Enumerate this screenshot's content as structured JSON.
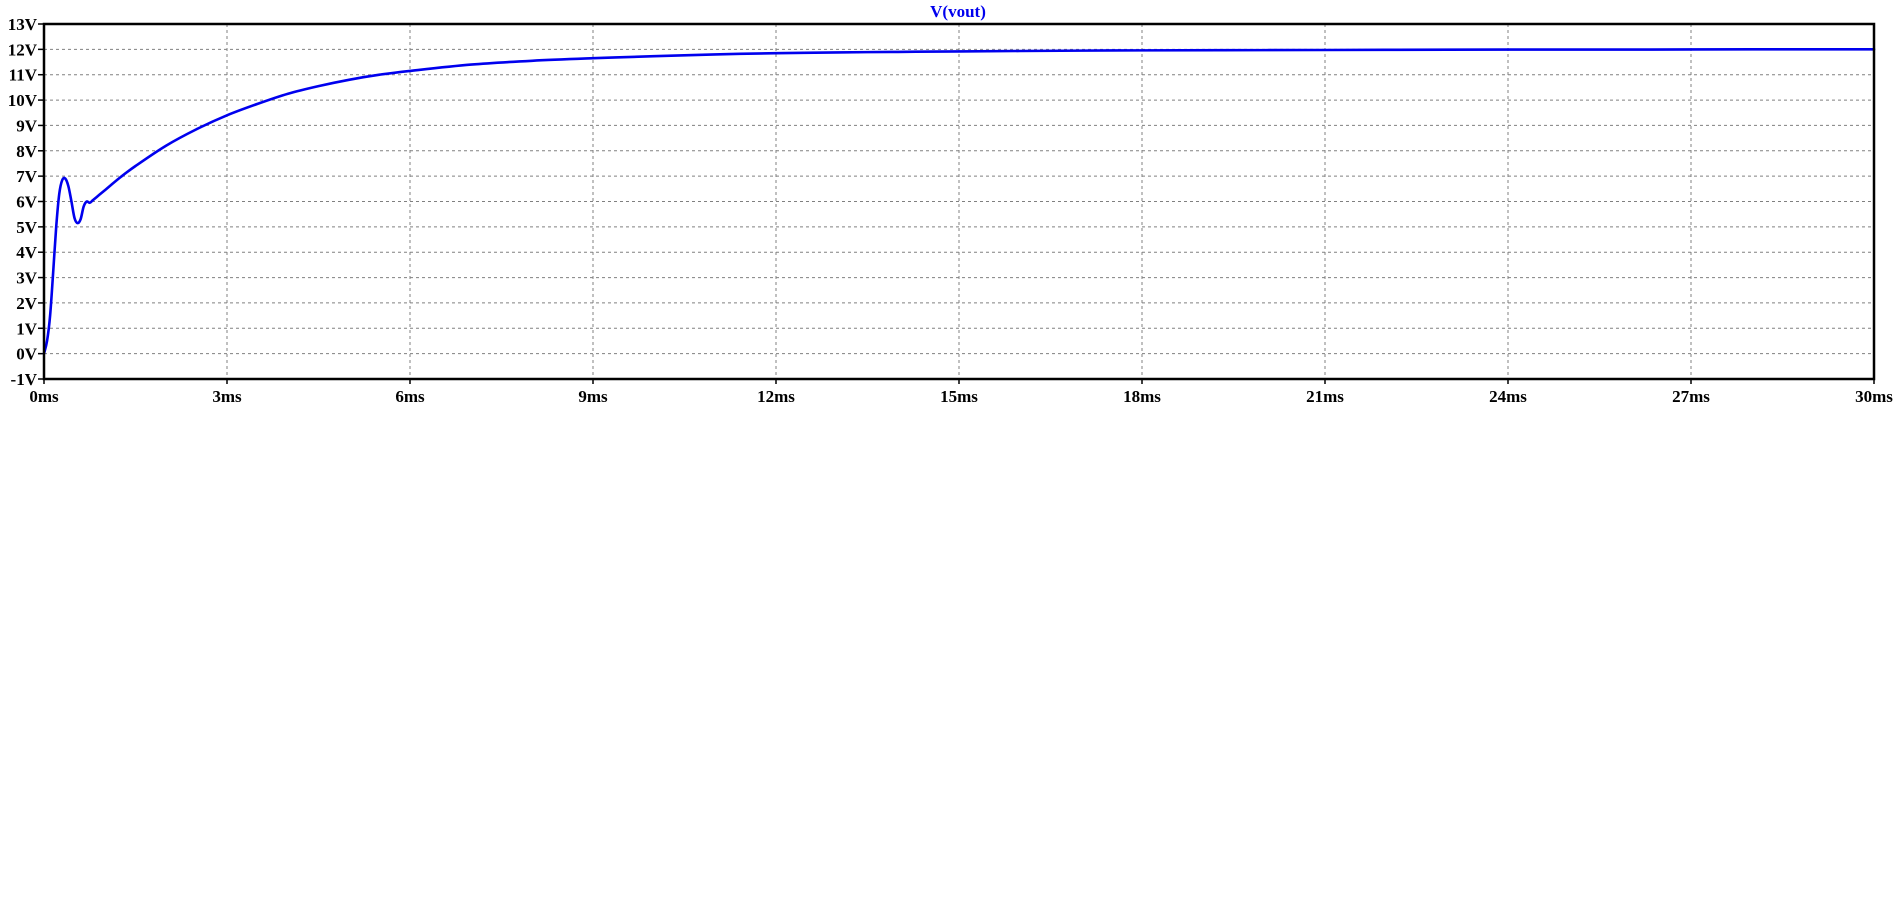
{
  "chart_data": {
    "type": "line",
    "title": "V(vout)",
    "xlabel": "",
    "ylabel": "",
    "xlim": [
      0,
      30
    ],
    "ylim": [
      -1,
      13
    ],
    "x_ticks": [
      0,
      3,
      6,
      9,
      12,
      15,
      18,
      21,
      24,
      27,
      30
    ],
    "x_tick_labels": [
      "0ms",
      "3ms",
      "6ms",
      "9ms",
      "12ms",
      "15ms",
      "18ms",
      "21ms",
      "24ms",
      "27ms",
      "30ms"
    ],
    "y_ticks": [
      -1,
      0,
      1,
      2,
      3,
      4,
      5,
      6,
      7,
      8,
      9,
      10,
      11,
      12,
      13
    ],
    "y_tick_labels": [
      "-1V",
      "0V",
      "1V",
      "2V",
      "3V",
      "4V",
      "5V",
      "6V",
      "7V",
      "8V",
      "9V",
      "10V",
      "11V",
      "12V",
      "13V"
    ],
    "grid": true,
    "series": [
      {
        "name": "V(vout)",
        "color": "#0000ee",
        "x": [
          0,
          0.05,
          0.1,
          0.15,
          0.2,
          0.25,
          0.3,
          0.35,
          0.4,
          0.45,
          0.5,
          0.55,
          0.6,
          0.65,
          0.7,
          0.75,
          0.8,
          0.85,
          0.9,
          1.0,
          1.25,
          1.5,
          2.0,
          2.5,
          3.0,
          3.5,
          4.0,
          4.5,
          5.0,
          5.5,
          6.0,
          7.0,
          8.0,
          9.0,
          10.0,
          11.0,
          12.0,
          13.0,
          14.0,
          15.0,
          17.0,
          18.0,
          20.0,
          22.0,
          24.0,
          26.0,
          28.0,
          30.0
        ],
        "y": [
          0,
          0.5,
          1.5,
          3.2,
          5.0,
          6.3,
          6.85,
          6.9,
          6.6,
          6.0,
          5.35,
          5.15,
          5.3,
          5.8,
          6.0,
          5.95,
          6.05,
          6.15,
          6.25,
          6.45,
          6.95,
          7.4,
          8.2,
          8.85,
          9.4,
          9.85,
          10.25,
          10.55,
          10.8,
          11.0,
          11.15,
          11.4,
          11.55,
          11.65,
          11.73,
          11.8,
          11.85,
          11.88,
          11.9,
          11.92,
          11.95,
          11.96,
          11.97,
          11.98,
          11.99,
          11.99,
          12.0,
          12.0
        ]
      }
    ]
  }
}
